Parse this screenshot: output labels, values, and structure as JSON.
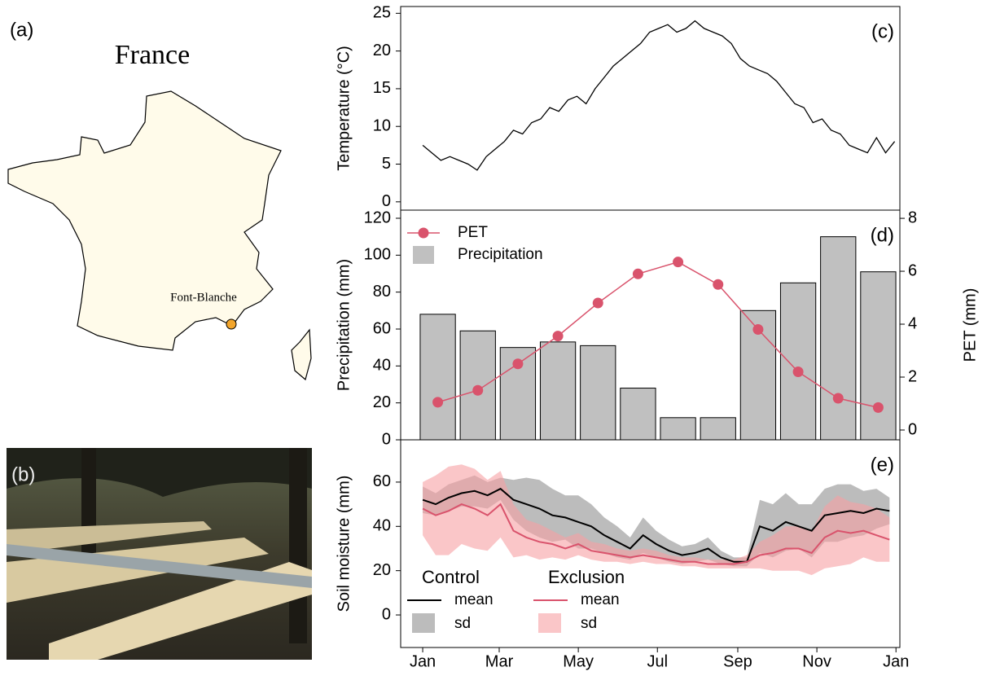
{
  "map": {
    "panel_label": "(a)",
    "title": "France",
    "site": "Font-Blanche"
  },
  "photo": {
    "panel_label": "(b)"
  },
  "chart_data": [
    {
      "type": "line",
      "panel_label": "(c)",
      "y_label": "Temperature (°C)",
      "x": [
        0,
        7,
        14,
        21,
        28,
        35,
        42,
        49,
        56,
        63,
        70,
        77,
        84,
        91,
        98,
        105,
        112,
        119,
        126,
        133,
        140,
        147,
        154,
        161,
        168,
        175,
        182,
        189,
        196,
        203,
        210,
        217,
        224,
        231,
        238,
        245,
        252,
        259,
        266,
        273,
        280,
        287,
        294,
        301,
        308,
        315,
        322,
        329,
        336,
        343,
        350,
        357,
        364
      ],
      "series": [
        {
          "color": "#000000",
          "values": [
            7.5,
            6.5,
            5.5,
            6.0,
            5.5,
            5.0,
            4.2,
            6.0,
            7.0,
            8.0,
            9.5,
            9.0,
            10.5,
            11.0,
            12.5,
            12.0,
            13.5,
            14.0,
            13.0,
            15.0,
            16.5,
            18.0,
            19.0,
            20.0,
            21.0,
            22.5,
            23.0,
            23.5,
            22.5,
            23.0,
            24.0,
            23.0,
            22.5,
            22.0,
            21.0,
            19.0,
            18.0,
            17.5,
            17.0,
            16.0,
            14.5,
            13.0,
            12.5,
            10.5,
            11.0,
            9.5,
            9.0,
            7.5,
            7.0,
            6.5,
            8.5,
            6.5,
            8.0
          ]
        }
      ],
      "xlim": [
        -17,
        368
      ],
      "ylim": [
        -1.1,
        25.9
      ],
      "yticks": [
        0,
        5,
        10,
        15,
        20,
        25
      ]
    },
    {
      "type": "bar_line",
      "panel_label": "(d)",
      "y_label": "Precipitation (mm)",
      "y2_label": "PET (mm)",
      "categories": [
        null,
        null,
        null,
        null,
        null,
        null,
        null,
        null,
        null,
        null,
        null,
        null
      ],
      "series": [
        {
          "name": "Precipitation",
          "color": "#c0c0c0",
          "values": [
            68,
            59,
            50,
            53,
            51,
            28,
            12,
            12,
            70,
            85,
            110,
            91
          ]
        },
        {
          "name": "PET",
          "color": "#d9536c",
          "axis": "y2",
          "values": [
            1.05,
            1.5,
            2.5,
            3.55,
            4.8,
            5.9,
            6.35,
            5.5,
            3.8,
            2.2,
            1.2,
            0.85
          ]
        }
      ],
      "ylim": [
        0,
        124.4
      ],
      "yticks": [
        0,
        20,
        40,
        60,
        80,
        100,
        120
      ],
      "y2lim": [
        -0.37,
        8.31
      ],
      "y2ticks": [
        0,
        2,
        4,
        6,
        8
      ]
    },
    {
      "type": "line_band",
      "panel_label": "(e)",
      "y_label": "Soil moisture (mm)",
      "x": [
        0,
        10,
        20,
        30,
        40,
        50,
        60,
        70,
        80,
        90,
        100,
        110,
        120,
        130,
        140,
        150,
        160,
        170,
        180,
        190,
        200,
        210,
        220,
        230,
        240,
        250,
        260,
        270,
        280,
        290,
        300,
        310,
        320,
        330,
        340,
        350,
        360
      ],
      "series": [
        {
          "name": "Control",
          "color": "#000000",
          "sd_color": "#b0b0b0",
          "values": [
            52,
            50,
            53,
            55,
            56,
            54,
            57,
            52,
            50,
            48,
            45,
            44,
            42,
            40,
            36,
            33,
            30,
            36,
            32,
            29,
            27,
            28,
            30,
            26,
            24,
            24,
            40,
            38,
            42,
            40,
            38,
            45,
            46,
            47,
            46,
            48,
            47
          ],
          "sd": [
            6,
            5,
            6,
            6,
            7,
            6,
            5,
            9,
            12,
            13,
            12,
            10,
            12,
            10,
            8,
            7,
            5,
            8,
            6,
            5,
            4,
            4,
            5,
            3,
            2,
            2,
            12,
            12,
            13,
            10,
            12,
            12,
            13,
            12,
            10,
            9,
            6
          ]
        },
        {
          "name": "Exclusion",
          "color": "#d9536c",
          "sd_color": "#f7a0a4",
          "values": [
            48,
            45,
            47,
            50,
            48,
            45,
            50,
            38,
            35,
            33,
            32,
            30,
            32,
            29,
            28,
            27,
            26,
            27,
            26,
            25,
            24,
            24,
            23,
            23,
            23,
            24,
            27,
            28,
            30,
            30,
            28,
            35,
            38,
            37,
            38,
            36,
            34
          ],
          "sd": [
            12,
            18,
            20,
            18,
            18,
            16,
            15,
            12,
            8,
            8,
            6,
            5,
            5,
            4,
            4,
            3,
            3,
            3,
            3,
            2,
            2,
            2,
            2,
            2,
            2,
            3,
            6,
            8,
            10,
            10,
            10,
            14,
            16,
            14,
            12,
            12,
            10
          ]
        }
      ],
      "legend_labels": [
        "mean",
        "sd"
      ],
      "xlim": [
        -17,
        368
      ],
      "ylim": [
        -14.7,
        79.1
      ],
      "yticks": [
        0,
        20,
        40,
        60
      ],
      "xticks": [
        {
          "value": 0,
          "label": "Jan"
        },
        {
          "value": 59,
          "label": "Mar"
        },
        {
          "value": 120,
          "label": "May"
        },
        {
          "value": 181,
          "label": "Jul"
        },
        {
          "value": 243,
          "label": "Sep"
        },
        {
          "value": 304,
          "label": "Nov"
        },
        {
          "value": 365,
          "label": "Jan"
        }
      ]
    }
  ]
}
